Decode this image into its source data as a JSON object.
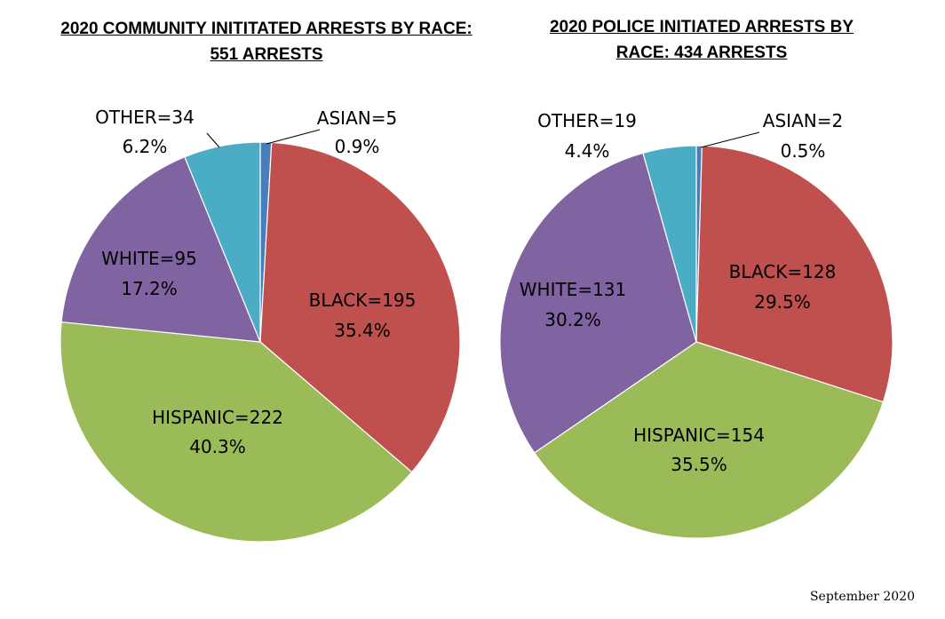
{
  "chart_data": [
    {
      "type": "pie",
      "title_line1": "2020 COMMUNITY INITITATED ARRESTS BY RACE:",
      "title_line2": "551 ARRESTS",
      "slices": [
        {
          "name": "ASIAN",
          "value": 5,
          "percent": "0.9%",
          "label": "ASIAN=5",
          "color": "#4a7ebb"
        },
        {
          "name": "BLACK",
          "value": 195,
          "percent": "35.4%",
          "label": "BLACK=195",
          "color": "#c0504d"
        },
        {
          "name": "HISPANIC",
          "value": 222,
          "percent": "40.3%",
          "label": "HISPANIC=222",
          "color": "#9bbb59"
        },
        {
          "name": "WHITE",
          "value": 95,
          "percent": "17.2%",
          "label": "WHITE=95",
          "color": "#8064a2"
        },
        {
          "name": "OTHER",
          "value": 34,
          "percent": "6.2%",
          "label": "OTHER=34",
          "color": "#4bacc6"
        }
      ]
    },
    {
      "type": "pie",
      "title_line1": "2020 POLICE INITIATED ARRESTS BY",
      "title_line2": "RACE: 434 ARRESTS",
      "slices": [
        {
          "name": "ASIAN",
          "value": 2,
          "percent": "0.5%",
          "label": "ASIAN=2",
          "color": "#4a7ebb"
        },
        {
          "name": "BLACK",
          "value": 128,
          "percent": "29.5%",
          "label": "BLACK=128",
          "color": "#c0504d"
        },
        {
          "name": "HISPANIC",
          "value": 154,
          "percent": "35.5%",
          "label": "HISPANIC=154",
          "color": "#9bbb59"
        },
        {
          "name": "WHITE",
          "value": 131,
          "percent": "30.2%",
          "label": "WHITE=131",
          "color": "#8064a2"
        },
        {
          "name": "OTHER",
          "value": 19,
          "percent": "4.4%",
          "label": "OTHER=19",
          "color": "#4bacc6"
        }
      ]
    }
  ],
  "footer": "September 2020"
}
